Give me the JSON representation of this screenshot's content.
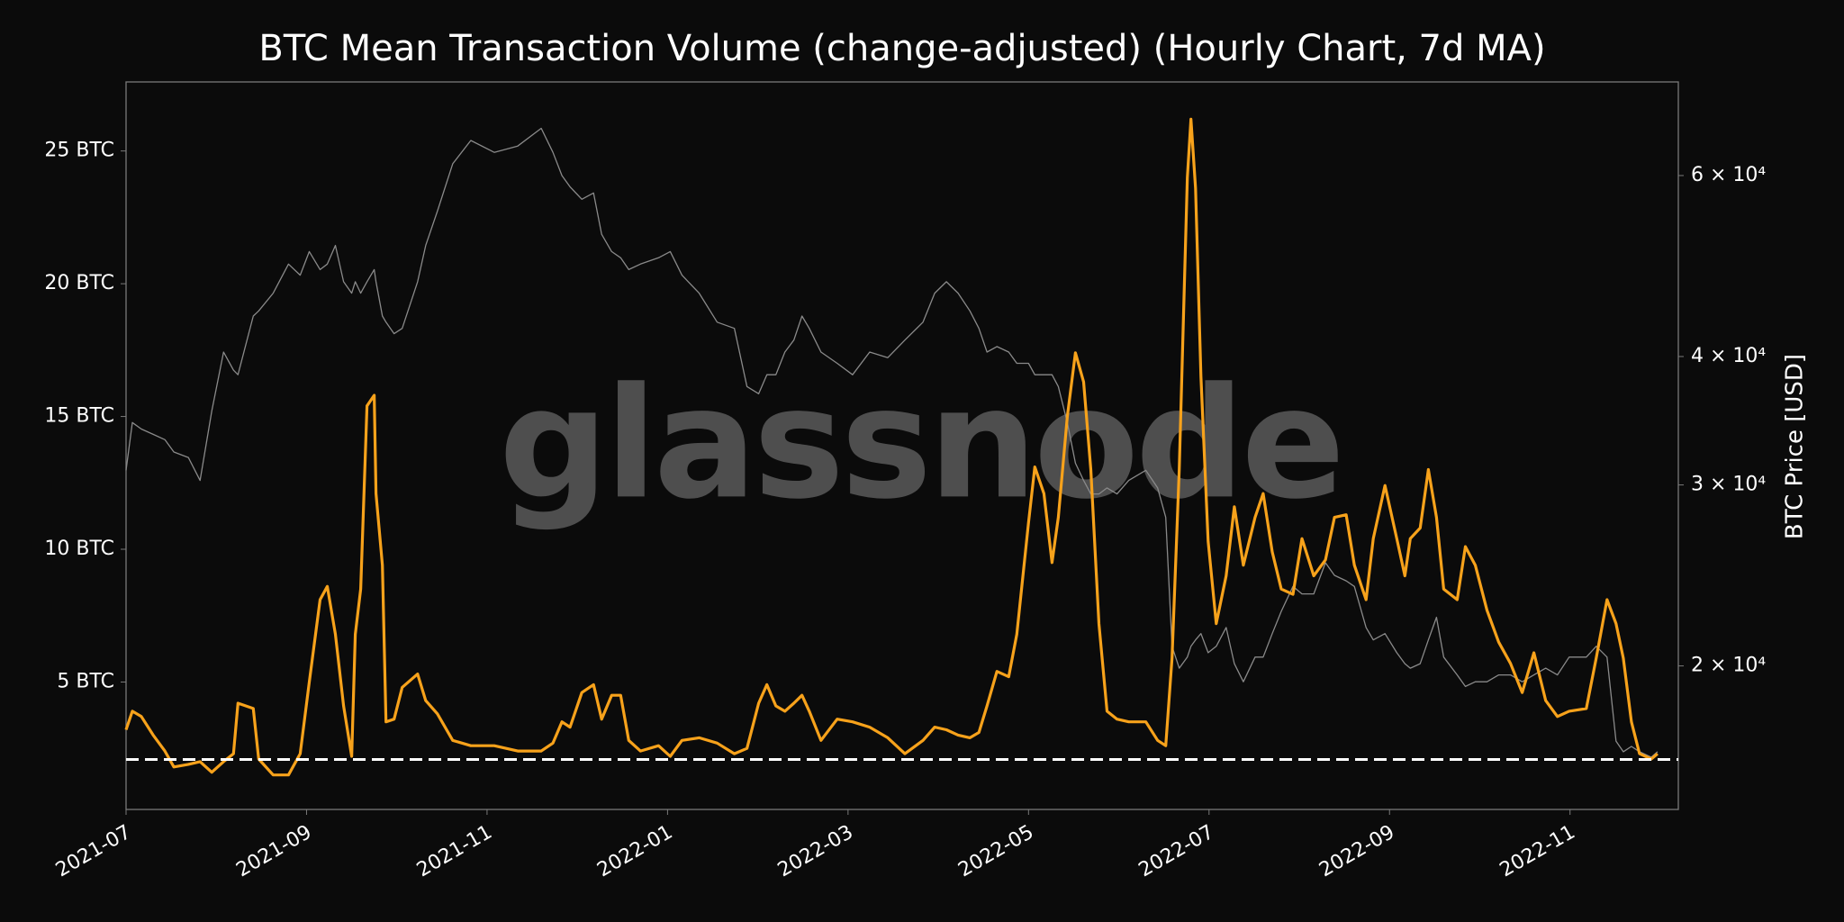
{
  "chart_data": {
    "type": "line",
    "title": "BTC Mean Transaction Volume (change-adjusted) (Hourly Chart, 7d MA)",
    "y2label": "BTC Price [USD]",
    "watermark": "glassnode",
    "x": [
      0,
      0.07,
      0.17,
      0.3,
      0.43,
      0.53,
      0.69,
      0.82,
      0.95,
      1.08,
      1.19,
      1.24,
      1.41,
      1.47,
      1.63,
      1.8,
      1.93,
      2.03,
      2.15,
      2.23,
      2.32,
      2.41,
      2.5,
      2.54,
      2.6,
      2.67,
      2.75,
      2.77,
      2.84,
      2.88,
      2.97,
      3.06,
      3.23,
      3.32,
      3.45,
      3.62,
      3.82,
      4.08,
      4.34,
      4.6,
      4.73,
      4.83,
      4.92,
      5.05,
      5.18,
      5.27,
      5.38,
      5.48,
      5.57,
      5.7,
      5.9,
      6.03,
      6.16,
      6.35,
      6.55,
      6.74,
      6.88,
      7.01,
      7.1,
      7.2,
      7.3,
      7.4,
      7.49,
      7.57,
      7.7,
      7.88,
      8.05,
      8.24,
      8.44,
      8.63,
      8.83,
      8.96,
      9.09,
      9.22,
      9.35,
      9.45,
      9.54,
      9.65,
      9.78,
      9.87,
      10,
      10.07,
      10.17,
      10.26,
      10.33,
      10.43,
      10.52,
      10.61,
      10.69,
      10.78,
      10.87,
      10.98,
      11.11,
      11.3,
      11.43,
      11.52,
      11.59,
      11.67,
      11.76,
      11.8,
      11.85,
      11.91,
      11.99,
      12.08,
      12.19,
      12.28,
      12.38,
      12.51,
      12.6,
      12.7,
      12.8,
      12.93,
      13.03,
      13.16,
      13.29,
      13.39,
      13.52,
      13.61,
      13.74,
      13.82,
      13.95,
      14.08,
      14.17,
      14.23,
      14.34,
      14.43,
      14.52,
      14.6,
      14.75,
      14.84,
      14.95,
      15.08,
      15.21,
      15.34,
      15.47,
      15.6,
      15.73,
      15.86,
      15.99,
      16.18,
      16.29,
      16.41,
      16.51,
      16.59,
      16.68,
      16.77,
      16.9,
      16.97
    ],
    "series": [
      {
        "color": "#8a8a8a",
        "axis": "y2",
        "values": [
          31000,
          34500,
          34000,
          33600,
          33200,
          32300,
          31900,
          30300,
          35400,
          40400,
          38800,
          38400,
          43800,
          44300,
          46100,
          49200,
          48000,
          50600,
          48600,
          49200,
          51300,
          47300,
          46100,
          47300,
          46100,
          47300,
          48600,
          47300,
          43800,
          43200,
          42100,
          42600,
          47300,
          51300,
          55400,
          61600,
          64900,
          63200,
          64100,
          66700,
          63200,
          60000,
          58500,
          56900,
          57700,
          52600,
          50600,
          49900,
          48600,
          49200,
          49900,
          50600,
          48000,
          46100,
          43200,
          42600,
          37400,
          36800,
          38400,
          38400,
          40400,
          41500,
          43800,
          42600,
          40400,
          39400,
          38400,
          40400,
          39900,
          41500,
          43200,
          46100,
          47300,
          46100,
          44300,
          42600,
          40400,
          40900,
          40400,
          39400,
          39400,
          38400,
          38400,
          38400,
          37400,
          34500,
          31500,
          30300,
          29400,
          29400,
          29800,
          29400,
          30300,
          31000,
          29800,
          27900,
          20900,
          19900,
          20400,
          20900,
          21200,
          21500,
          20600,
          20900,
          21800,
          20100,
          19300,
          20400,
          20400,
          21500,
          22600,
          23900,
          23500,
          23500,
          25200,
          24500,
          24200,
          23900,
          21800,
          21200,
          21500,
          20600,
          20100,
          19900,
          20100,
          21200,
          22300,
          20400,
          19600,
          19100,
          19300,
          19300,
          19600,
          19600,
          19300,
          19600,
          19900,
          19600,
          20400,
          20400,
          20900,
          20400,
          16900,
          16500,
          16700,
          16500,
          16300,
          16500
        ]
      },
      {
        "color": "#f7a21b",
        "values": [
          3.2,
          3.9,
          3.7,
          3.0,
          2.4,
          1.8,
          1.9,
          2.0,
          1.6,
          2.0,
          2.3,
          4.2,
          4.0,
          2.1,
          1.5,
          1.5,
          2.3,
          5.0,
          8.1,
          8.6,
          6.8,
          4.1,
          2.2,
          6.8,
          8.5,
          15.4,
          15.8,
          12.1,
          9.4,
          3.5,
          3.6,
          4.8,
          5.3,
          4.3,
          3.8,
          2.8,
          2.6,
          2.6,
          2.4,
          2.4,
          2.7,
          3.5,
          3.3,
          4.6,
          4.9,
          3.6,
          4.5,
          4.5,
          2.8,
          2.4,
          2.6,
          2.2,
          2.8,
          2.9,
          2.7,
          2.3,
          2.5,
          4.2,
          4.9,
          4.1,
          3.9,
          4.2,
          4.5,
          3.9,
          2.8,
          3.6,
          3.5,
          3.3,
          2.9,
          2.3,
          2.8,
          3.3,
          3.2,
          3.0,
          2.9,
          3.1,
          4.1,
          5.4,
          5.2,
          6.8,
          11.0,
          13.1,
          12.1,
          9.5,
          11.2,
          15.0,
          17.4,
          16.3,
          13.0,
          7.2,
          3.9,
          3.6,
          3.5,
          3.5,
          2.8,
          2.6,
          5.9,
          13.0,
          24.0,
          26.2,
          23.6,
          16.5,
          10.3,
          7.2,
          9.0,
          11.6,
          9.4,
          11.2,
          12.1,
          9.9,
          8.5,
          8.3,
          10.4,
          9.0,
          9.6,
          11.2,
          11.3,
          9.4,
          8.1,
          10.4,
          12.4,
          10.4,
          9.0,
          10.4,
          10.8,
          13.0,
          11.2,
          8.5,
          8.1,
          10.1,
          9.4,
          7.7,
          6.5,
          5.7,
          4.6,
          6.1,
          4.3,
          3.7,
          3.9,
          4.0,
          5.9,
          8.1,
          7.2,
          5.9,
          3.5,
          2.3,
          2.1,
          2.3
        ]
      }
    ],
    "hline": 2.08,
    "hline_color": "#ffffff",
    "xlim": [
      0,
      17.2
    ],
    "xticks": [
      {
        "value": 0,
        "label": "2021-07"
      },
      {
        "value": 2,
        "label": "2021-09"
      },
      {
        "value": 4,
        "label": "2021-11"
      },
      {
        "value": 6,
        "label": "2022-01"
      },
      {
        "value": 8,
        "label": "2022-03"
      },
      {
        "value": 10,
        "label": "2022-05"
      },
      {
        "value": 12,
        "label": "2022-07"
      },
      {
        "value": 14,
        "label": "2022-09"
      },
      {
        "value": 16,
        "label": "2022-11"
      }
    ],
    "ylim": [
      0.2,
      27.6
    ],
    "yticks": [
      {
        "value": 5,
        "label": "5 BTC"
      },
      {
        "value": 10,
        "label": "10 BTC"
      },
      {
        "value": 15,
        "label": "15 BTC"
      },
      {
        "value": 20,
        "label": "20 BTC"
      },
      {
        "value": 25,
        "label": "25 BTC"
      }
    ],
    "y2lim": [
      14500,
      74000
    ],
    "y2scale": "log",
    "y2ticks": [
      {
        "value": 20000,
        "label": "2 × 10⁴"
      },
      {
        "value": 30000,
        "label": "3 × 10⁴"
      },
      {
        "value": 40000,
        "label": "4 × 10⁴"
      },
      {
        "value": 60000,
        "label": "6 × 10⁴"
      }
    ],
    "grid": false
  }
}
